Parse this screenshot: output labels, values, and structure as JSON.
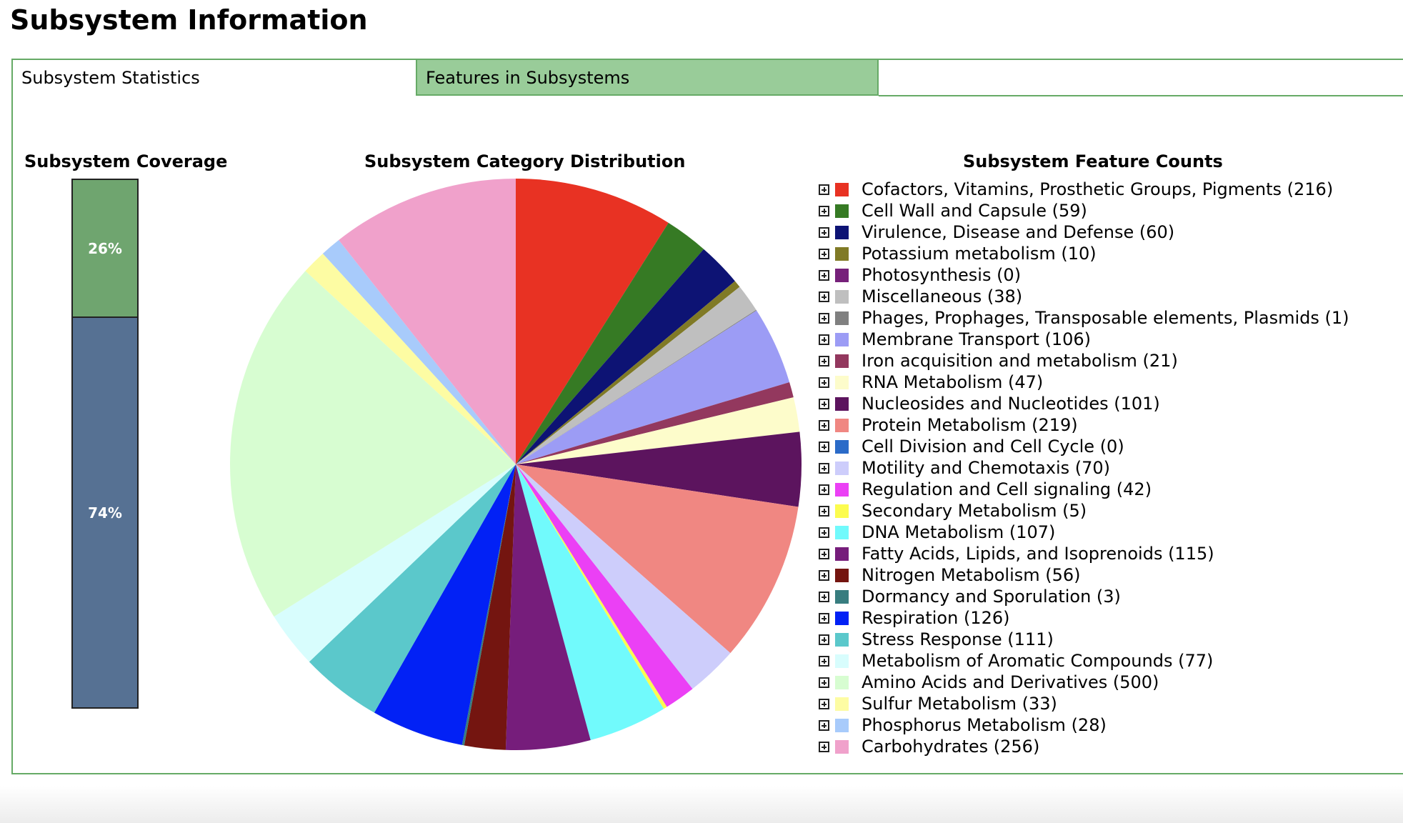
{
  "page": {
    "title": "Subsystem Information"
  },
  "tabs": [
    {
      "label": "Subsystem Statistics",
      "active": true
    },
    {
      "label": "Features in Subsystems",
      "active": false
    }
  ],
  "colors": {
    "panel_border": "#66aa66",
    "inactive_tab": "#99cc99",
    "coverage_in": "#6fa56f",
    "coverage_out": "#567193"
  },
  "coverage": {
    "heading": "Subsystem Coverage",
    "in_subsystems_label": "26%",
    "not_in_subsystems_label": "74%"
  },
  "pie_heading": "Subsystem Category Distribution",
  "legend_heading": "Subsystem Feature Counts",
  "chart_data": [
    {
      "type": "bar",
      "title": "Subsystem Coverage",
      "stacked": true,
      "values": [
        26,
        74
      ],
      "labels": [
        "26%",
        "74%"
      ],
      "colors": [
        "#6fa56f",
        "#567193"
      ]
    },
    {
      "type": "pie",
      "title": "Subsystem Category Distribution",
      "start_angle": "top, clockwise",
      "slices": [
        {
          "name": "Cofactors, Vitamins, Prosthetic Groups, Pigments",
          "value": 216,
          "color": "#e83223",
          "label": "Cofactors, Vitamins, Prosthetic Groups, Pigments (216)"
        },
        {
          "name": "Cell Wall and Capsule",
          "value": 59,
          "color": "#367a24",
          "label": "Cell Wall and Capsule (59)"
        },
        {
          "name": "Virulence, Disease and Defense",
          "value": 60,
          "color": "#0d1374",
          "label": "Virulence, Disease and Defense (60)"
        },
        {
          "name": "Potassium metabolism",
          "value": 10,
          "color": "#807a26",
          "label": "Potassium metabolism (10)"
        },
        {
          "name": "Photosynthesis",
          "value": 0,
          "color": "#76217a",
          "label": "Photosynthesis (0)"
        },
        {
          "name": "Miscellaneous",
          "value": 38,
          "color": "#bfbfbf",
          "label": "Miscellaneous (38)"
        },
        {
          "name": "Phages, Prophages, Transposable elements, Plasmids",
          "value": 1,
          "color": "#808080",
          "label": "Phages, Prophages, Transposable elements, Plasmids (1)"
        },
        {
          "name": "Membrane Transport",
          "value": 106,
          "color": "#9c9cf5",
          "label": "Membrane Transport (106)"
        },
        {
          "name": "Iron acquisition and metabolism",
          "value": 21,
          "color": "#93385e",
          "label": "Iron acquisition and metabolism (21)"
        },
        {
          "name": "RNA Metabolism",
          "value": 47,
          "color": "#fdfccb",
          "label": "RNA Metabolism (47)"
        },
        {
          "name": "Nucleosides and Nucleotides",
          "value": 101,
          "color": "#5c145e",
          "label": "Nucleosides and Nucleotides (101)"
        },
        {
          "name": "Protein Metabolism",
          "value": 219,
          "color": "#f08782",
          "label": "Protein Metabolism (219)"
        },
        {
          "name": "Cell Division and Cell Cycle",
          "value": 0,
          "color": "#2b6bc8",
          "label": "Cell Division and Cell Cycle (0)"
        },
        {
          "name": "Motility and Chemotaxis",
          "value": 70,
          "color": "#cdcdfb",
          "label": "Motility and Chemotaxis (70)"
        },
        {
          "name": "Regulation and Cell signaling",
          "value": 42,
          "color": "#eb40f5",
          "label": "Regulation and Cell signaling (42)"
        },
        {
          "name": "Secondary Metabolism",
          "value": 5,
          "color": "#fcfc4f",
          "label": "Secondary Metabolism (5)"
        },
        {
          "name": "DNA Metabolism",
          "value": 107,
          "color": "#71fafc",
          "label": "DNA Metabolism (107)"
        },
        {
          "name": "Fatty Acids, Lipids, and Isoprenoids",
          "value": 115,
          "color": "#761d7b",
          "label": "Fatty Acids, Lipids, and Isoprenoids (115)"
        },
        {
          "name": "Nitrogen Metabolism",
          "value": 56,
          "color": "#741510",
          "label": "Nitrogen Metabolism (56)"
        },
        {
          "name": "Dormancy and Sporulation",
          "value": 3,
          "color": "#387d7f",
          "label": "Dormancy and Sporulation (3)"
        },
        {
          "name": "Respiration",
          "value": 126,
          "color": "#0221f5",
          "label": "Respiration (126)"
        },
        {
          "name": "Stress Response",
          "value": 111,
          "color": "#5bc8cb",
          "label": "Stress Response (111)"
        },
        {
          "name": "Metabolism of Aromatic Compounds",
          "value": 77,
          "color": "#d8fdfd",
          "label": "Metabolism of Aromatic Compounds (77)"
        },
        {
          "name": "Amino Acids and Derivatives",
          "value": 500,
          "color": "#d7fdd1",
          "label": "Amino Acids and Derivatives (500)"
        },
        {
          "name": "Sulfur Metabolism",
          "value": 33,
          "color": "#fdfca3",
          "label": "Sulfur Metabolism (33)"
        },
        {
          "name": "Phosphorus Metabolism",
          "value": 28,
          "color": "#a8cbfb",
          "label": "Phosphorus Metabolism (28)"
        },
        {
          "name": "Carbohydrates",
          "value": 256,
          "color": "#f0a1cb",
          "label": "Carbohydrates (256)"
        }
      ]
    }
  ]
}
